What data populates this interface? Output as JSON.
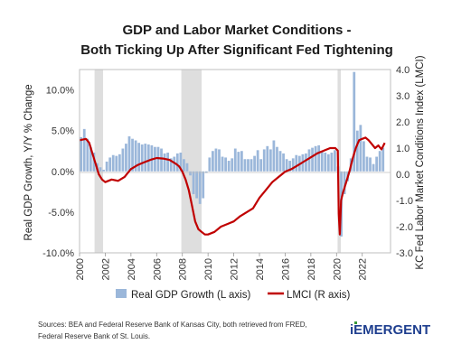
{
  "title_line1": "GDP and Labor Market Conditions -",
  "title_line2": "Both Ticking Up After Significant Fed Tightening",
  "source_line1": "Sources:  BEA and Federal Reserve Bank of Kansas City, both retrieved from FRED,",
  "source_line2": "Federal Reserve Bank of St. Louis.",
  "logo_text": "iEMERGENT",
  "colors": {
    "bar": "#9bb7da",
    "line": "#c00000",
    "recession": "#dedede",
    "logo": "#1f3f8f",
    "logo_accent": "#3a9a3a"
  },
  "chart_data": {
    "type": "bar+line",
    "ylabel_left": "Real GDP Growth, Y/Y % Change",
    "ylabel_right": "KC Fed Labor Market Conditions Index (LMCI)",
    "yticks_left": [
      "10.0%",
      "5.0%",
      "0.0%",
      "-5.0%",
      "-10.0%"
    ],
    "yticks_right": [
      "4.0",
      "3.0",
      "2.0",
      "1.0",
      "0.0",
      "-1.0",
      "-2.0",
      "-3.0"
    ],
    "ylim_left": [
      -10,
      12.5
    ],
    "ylim_right": [
      -3,
      4
    ],
    "xlim": [
      2000,
      2024.2
    ],
    "xticks": [
      "2000",
      "2002",
      "2004",
      "2006",
      "2008",
      "2010",
      "2012",
      "2014",
      "2016",
      "2018",
      "2020",
      "2022"
    ],
    "recessions": [
      [
        2001.17,
        2001.83
      ],
      [
        2007.92,
        2009.5
      ],
      [
        2020.08,
        2020.33
      ]
    ],
    "legend": [
      "Real GDP Growth (L axis)",
      "LMCI (R axis)"
    ],
    "gdp_growth": {
      "name": "Real GDP Growth (L axis)",
      "x": [
        2000.0,
        2000.25,
        2000.5,
        2000.75,
        2001.0,
        2001.25,
        2001.5,
        2001.75,
        2002.0,
        2002.25,
        2002.5,
        2002.75,
        2003.0,
        2003.25,
        2003.5,
        2003.75,
        2004.0,
        2004.25,
        2004.5,
        2004.75,
        2005.0,
        2005.25,
        2005.5,
        2005.75,
        2006.0,
        2006.25,
        2006.5,
        2006.75,
        2007.0,
        2007.25,
        2007.5,
        2007.75,
        2008.0,
        2008.25,
        2008.5,
        2008.75,
        2009.0,
        2009.25,
        2009.5,
        2009.75,
        2010.0,
        2010.25,
        2010.5,
        2010.75,
        2011.0,
        2011.25,
        2011.5,
        2011.75,
        2012.0,
        2012.25,
        2012.5,
        2012.75,
        2013.0,
        2013.25,
        2013.5,
        2013.75,
        2014.0,
        2014.25,
        2014.5,
        2014.75,
        2015.0,
        2015.25,
        2015.5,
        2015.75,
        2016.0,
        2016.25,
        2016.5,
        2016.75,
        2017.0,
        2017.25,
        2017.5,
        2017.75,
        2018.0,
        2018.25,
        2018.5,
        2018.75,
        2019.0,
        2019.25,
        2019.5,
        2019.75,
        2020.0,
        2020.25,
        2020.5,
        2020.75,
        2021.0,
        2021.25,
        2021.5,
        2021.75,
        2022.0,
        2022.25,
        2022.5,
        2022.75,
        2023.0,
        2023.25,
        2023.5
      ],
      "values": [
        4.2,
        5.2,
        4.0,
        3.0,
        2.3,
        1.0,
        0.5,
        0.2,
        1.2,
        1.7,
        2.0,
        1.9,
        2.1,
        2.8,
        3.4,
        4.3,
        4.0,
        3.8,
        3.5,
        3.3,
        3.4,
        3.3,
        3.2,
        3.0,
        3.0,
        2.8,
        2.2,
        2.3,
        1.6,
        1.8,
        2.2,
        2.3,
        1.5,
        1.0,
        -0.5,
        -2.8,
        -3.3,
        -4.0,
        -3.3,
        -0.2,
        1.7,
        2.5,
        2.8,
        2.7,
        1.8,
        1.7,
        1.3,
        1.6,
        2.8,
        2.4,
        2.5,
        1.5,
        1.5,
        1.5,
        1.9,
        2.6,
        1.5,
        2.7,
        3.1,
        2.7,
        3.8,
        3.0,
        2.5,
        2.2,
        1.5,
        1.3,
        1.6,
        2.0,
        1.9,
        2.1,
        2.2,
        2.7,
        2.9,
        3.1,
        3.2,
        2.5,
        2.3,
        2.1,
        2.3,
        2.6,
        0.6,
        -8.0,
        -2.8,
        -1.2,
        1.6,
        12.2,
        5.0,
        5.7,
        3.7,
        1.8,
        1.7,
        0.9,
        1.8,
        2.5,
        2.9
      ]
    },
    "lmci": {
      "name": "LMCI (R axis)",
      "x": [
        2000.0,
        2000.5,
        2000.75,
        2001.0,
        2001.25,
        2001.5,
        2001.75,
        2002.0,
        2002.5,
        2003.0,
        2003.5,
        2003.75,
        2004.0,
        2004.5,
        2005.0,
        2005.5,
        2006.0,
        2006.5,
        2007.0,
        2007.5,
        2007.75,
        2008.0,
        2008.25,
        2008.5,
        2008.75,
        2009.0,
        2009.25,
        2009.5,
        2009.75,
        2010.0,
        2010.5,
        2011.0,
        2011.5,
        2012.0,
        2012.5,
        2013.0,
        2013.5,
        2014.0,
        2014.5,
        2015.0,
        2015.5,
        2016.0,
        2016.5,
        2017.0,
        2017.5,
        2018.0,
        2018.5,
        2019.0,
        2019.5,
        2019.9,
        2020.1,
        2020.17,
        2020.25,
        2020.35,
        2020.5,
        2020.75,
        2021.0,
        2021.25,
        2021.5,
        2021.75,
        2022.0,
        2022.25,
        2022.5,
        2022.75,
        2023.0,
        2023.25,
        2023.5,
        2023.75
      ],
      "values": [
        1.3,
        1.35,
        1.2,
        0.8,
        0.4,
        0.0,
        -0.2,
        -0.3,
        -0.2,
        -0.25,
        -0.1,
        0.05,
        0.2,
        0.35,
        0.45,
        0.55,
        0.62,
        0.6,
        0.55,
        0.4,
        0.3,
        0.1,
        -0.2,
        -0.6,
        -1.2,
        -1.8,
        -2.1,
        -2.2,
        -2.3,
        -2.3,
        -2.2,
        -2.0,
        -1.9,
        -1.8,
        -1.6,
        -1.45,
        -1.3,
        -0.9,
        -0.6,
        -0.3,
        -0.1,
        0.1,
        0.2,
        0.35,
        0.5,
        0.65,
        0.8,
        0.9,
        1.0,
        1.0,
        0.9,
        -1.5,
        -2.3,
        -1.0,
        -0.7,
        -0.3,
        0.1,
        0.6,
        1.0,
        1.3,
        1.35,
        1.4,
        1.3,
        1.15,
        1.0,
        1.1,
        0.95,
        1.2
      ]
    }
  }
}
